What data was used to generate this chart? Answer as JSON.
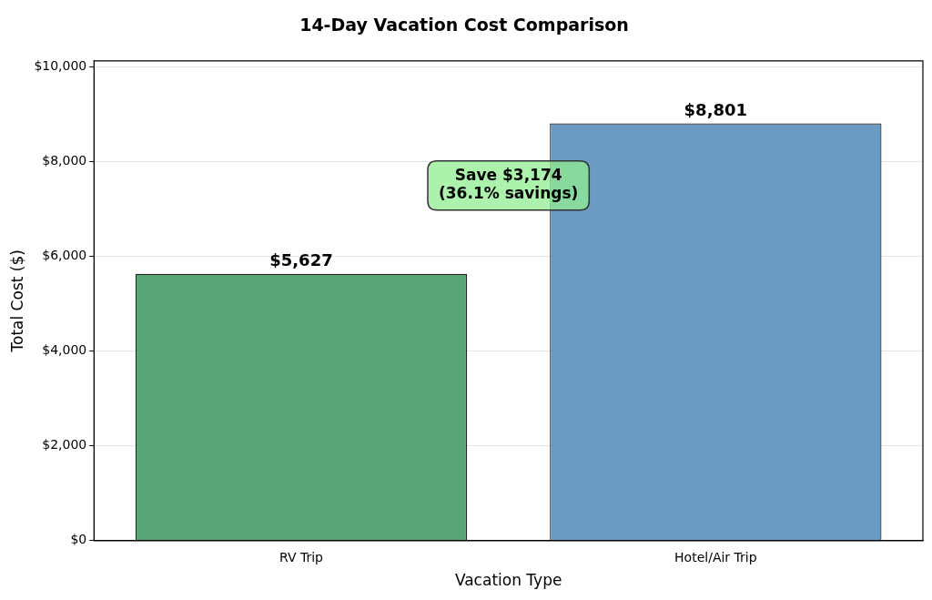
{
  "chart_data": {
    "type": "bar",
    "title": "14-Day Vacation Cost Comparison",
    "xlabel": "Vacation Type",
    "ylabel": "Total Cost ($)",
    "categories": [
      "RV Trip",
      "Hotel/Air Trip"
    ],
    "values": [
      5627,
      8801
    ],
    "colors": [
      "#5aa577",
      "#6b9bc3"
    ],
    "value_labels": [
      "$5,627",
      "$8,801"
    ],
    "ylim": [
      0,
      10121
    ],
    "yticks": [
      {
        "value": 0,
        "label": "$0"
      },
      {
        "value": 2000,
        "label": "$2,000"
      },
      {
        "value": 4000,
        "label": "$4,000"
      },
      {
        "value": 6000,
        "label": "$6,000"
      },
      {
        "value": 8000,
        "label": "$8,000"
      },
      {
        "value": 10000,
        "label": "$10,000"
      }
    ],
    "grid": "y",
    "annotations": [
      "Save $3,174\n(36.1% savings)"
    ]
  }
}
